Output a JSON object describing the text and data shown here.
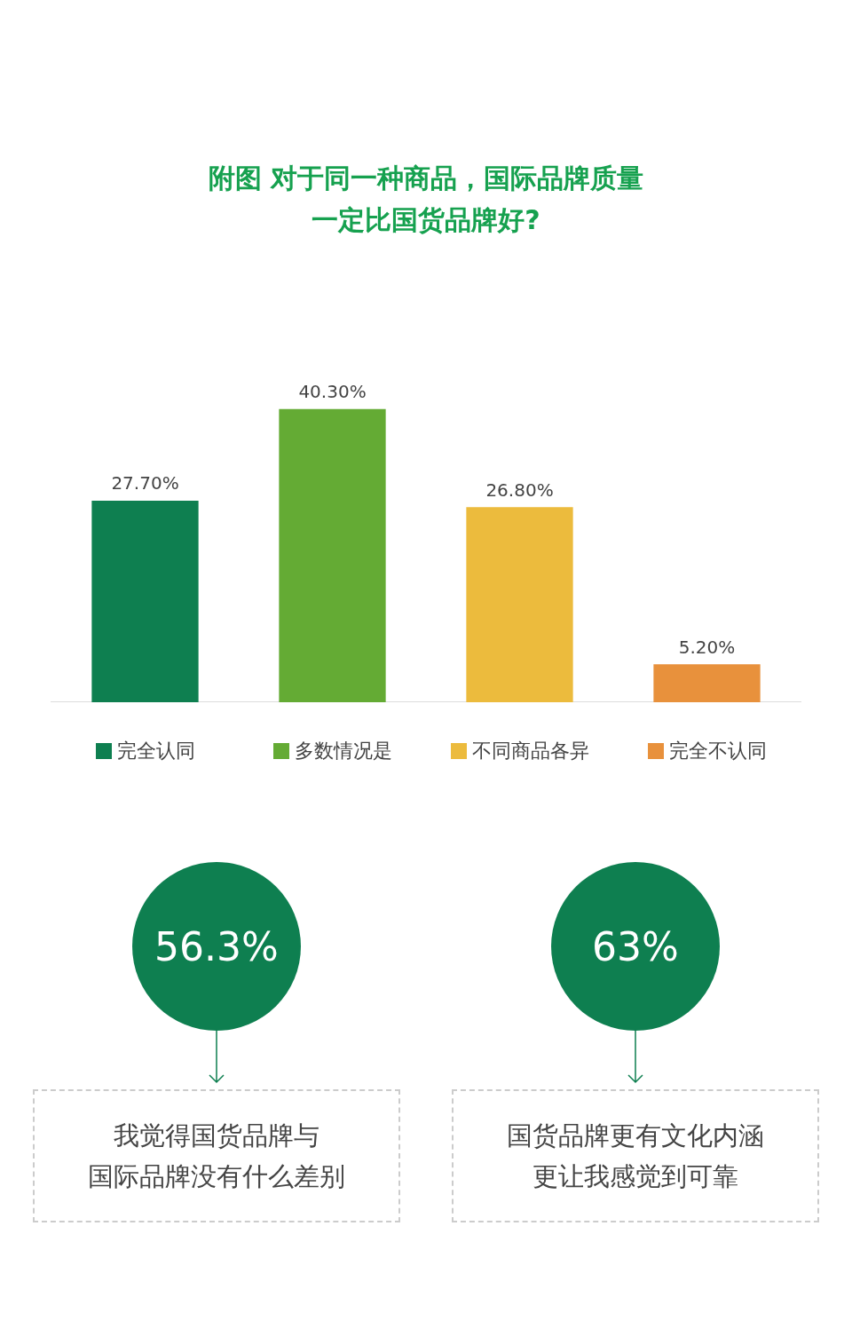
{
  "chart_data": [
    {
      "type": "bar",
      "title": "附图 对于同一种商品，国际品牌质量一定比国货品牌好?",
      "categories": [
        "完全认同",
        "多数情况是",
        "不同商品各异",
        "完全不认同"
      ],
      "values": [
        27.7,
        40.3,
        26.8,
        5.2
      ],
      "colors": [
        "#0e7f50",
        "#64ab34",
        "#ecbb3d",
        "#e8913c"
      ],
      "value_labels": [
        "27.70%",
        "40.30%",
        "26.80%",
        "5.20%"
      ],
      "grid": false,
      "tick_labels": "x"
    },
    {
      "type": "other",
      "annotations": [
        "56.3%",
        "我觉得国货品牌与",
        "国际品牌没有什么差别"
      ]
    },
    {
      "type": "other",
      "annotations": [
        "63%",
        "国货品牌更有文化内涵",
        "更让我感觉到可靠"
      ]
    }
  ]
}
